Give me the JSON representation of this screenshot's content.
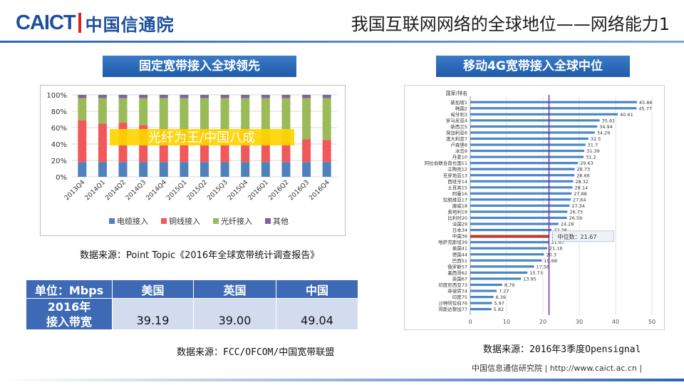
{
  "header": {
    "logo_en": "CAICT",
    "logo_cn": "中国信通院",
    "title": "我国互联网网络的全球地位——网络能力1"
  },
  "left": {
    "banner": "固定宽带接入全球领先",
    "chart_overlay": "光纤为王/中国八成",
    "source": "数据来源：Point Topic《2016年全球宽带统计调查报告》"
  },
  "right": {
    "banner": "移动4G宽带接入全球中位",
    "source": "数据来源：2016年3季度Opensignal"
  },
  "table": {
    "header": [
      "单位：Mbps",
      "美国",
      "英国",
      "中国"
    ],
    "row_label_line1": "2016年",
    "row_label_line2": "接入带宽",
    "values": [
      "39.19",
      "39.00",
      "49.04"
    ],
    "source": "数据来源：FCC/OFCOM/中国宽带联盟"
  },
  "footer": {
    "text": "中国信息通信研究院  |  http://www.caict.ac.cn  |"
  },
  "colors": {
    "cable": "#4f81bd",
    "copper": "#f0585a",
    "fiber": "#9bbb59",
    "other": "#8064a2",
    "bar_blue": "#4a86c8",
    "median_line": "#7030a0",
    "china_bar": "#c0392b"
  },
  "chart_data": [
    {
      "type": "bar",
      "stacked": true,
      "title": "",
      "categories": [
        "2013Q4",
        "2014Q1",
        "2014Q2",
        "2014Q3",
        "2014Q4",
        "2015Q1",
        "2015Q2",
        "2015Q3",
        "2015Q4",
        "2016Q1",
        "2016Q2",
        "2016Q3",
        "2016Q4"
      ],
      "series": [
        {
          "name": "电缆接入",
          "values": [
            18,
            18,
            18,
            18,
            18,
            18,
            18,
            18,
            18,
            18,
            18,
            18,
            18
          ]
        },
        {
          "name": "铜线接入",
          "values": [
            51,
            47,
            48,
            45,
            40,
            38,
            36,
            34,
            32,
            28,
            25,
            28,
            27
          ]
        },
        {
          "name": "光纤接入",
          "values": [
            27,
            31,
            30,
            33,
            38,
            40,
            42,
            44,
            46,
            50,
            53,
            50,
            51
          ]
        },
        {
          "name": "其他",
          "values": [
            4,
            4,
            4,
            4,
            4,
            4,
            4,
            4,
            4,
            4,
            4,
            4,
            4
          ]
        }
      ],
      "y_ticks": [
        "0%",
        "20%",
        "40%",
        "60%",
        "80%",
        "100%"
      ],
      "ylim": [
        0,
        100
      ],
      "legend": "bottom"
    },
    {
      "type": "bar",
      "orientation": "horizontal",
      "header_label": "国家/排名",
      "categories": [
        "新加坡1",
        "韩国2",
        "匈牙利3",
        "罗马尼亚4",
        "新西兰5",
        "保加利亚6",
        "澳大利亚7",
        "卢森堡8",
        "冰岛9",
        "丹麦10",
        "阿拉伯联合酋长国11",
        "立陶宛12",
        "克罗地亚13",
        "西班牙14",
        "土耳其15",
        "阿曼16",
        "拉脱维亚17",
        "挪威18",
        "奥地利19",
        "比利时20",
        "法国29",
        "日本34",
        "中国36",
        "哈萨克斯坦39",
        "美国41",
        "德国44",
        "巴西51",
        "俄罗斯57",
        "墨西哥62",
        "英国67",
        "印度尼西亚73",
        "菲律宾74",
        "印度75",
        "沙特阿拉伯76",
        "哥斯达黎加77"
      ],
      "values": [
        45.86,
        45.77,
        40.61,
        35.61,
        34.94,
        34.26,
        32.5,
        31.7,
        31.39,
        31.2,
        29.63,
        28.73,
        28.66,
        28.32,
        28.14,
        27.88,
        27.64,
        27.34,
        26.73,
        26.59,
        24.28,
        22.38,
        21.74,
        21.67,
        21.16,
        20.3,
        19.68,
        17.56,
        15.73,
        13.95,
        8.79,
        7.27,
        6.39,
        5.97,
        5.82
      ],
      "x_ticks": [
        "0",
        "10",
        "20",
        "30",
        "40",
        "50"
      ],
      "xlim": [
        0,
        50
      ],
      "median_label": "中位数：21.67",
      "median_value": 21.67,
      "highlight": "中国36"
    }
  ]
}
